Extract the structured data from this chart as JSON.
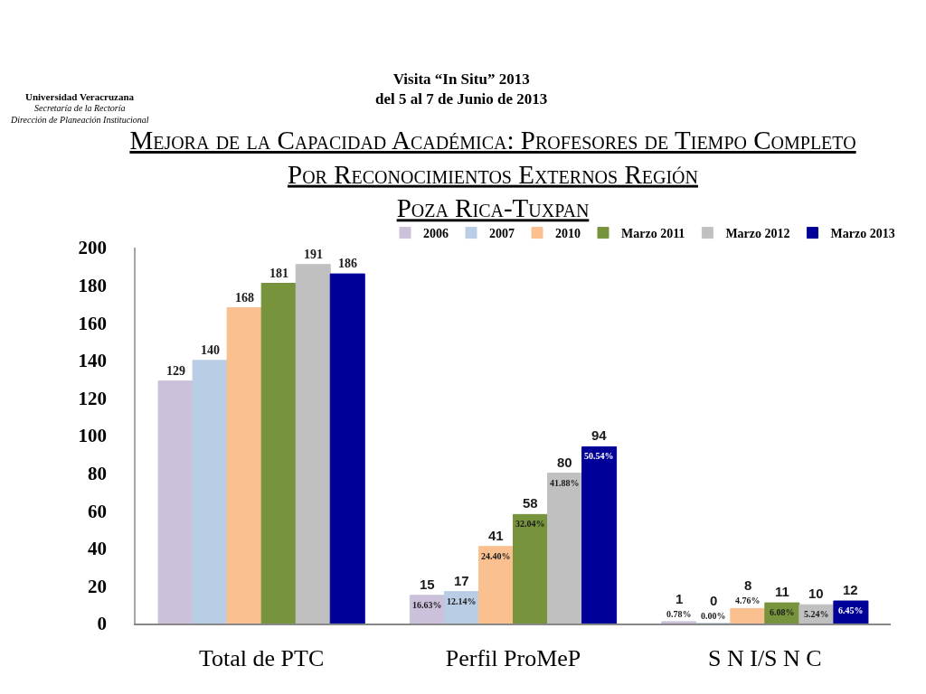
{
  "chart_data": {
    "type": "bar",
    "title": "Mejora de la Capacidad Académica: Profesores de Tiempo Completo\nPor Reconocimientos Externos Región\nPoza Rica-Tuxpan",
    "subtitle": "Visita “In Situ” 2013\ndel 5 al 7 de Junio de 2013",
    "annotations": [
      "Universidad Veracruzana\nSecretaría de la Rectoría\nDirección de Planeación Institucional",
      "16.63%",
      "12.14%",
      "24.40%",
      "32.04%",
      "41.88%",
      "50.54%",
      "0.78%",
      "0.00%",
      "4.76%",
      "6.08%",
      "5.24%",
      "6.45%"
    ],
    "categories": [
      "Total de PTC",
      "Perfil ProMeP",
      "S N I/S N C"
    ],
    "series": [
      {
        "name": "2006",
        "color": "#ccc1da",
        "values": [
          129,
          15,
          1
        ]
      },
      {
        "name": "2007",
        "color": "#b9cde5",
        "values": [
          140,
          17,
          0
        ]
      },
      {
        "name": "2010",
        "color": "#fac090",
        "values": [
          168,
          41,
          8
        ]
      },
      {
        "name": "Marzo 2011",
        "color": "#77933c",
        "values": [
          181,
          58,
          11
        ]
      },
      {
        "name": "Marzo 2012",
        "color": "#c0c0c0",
        "values": [
          191,
          80,
          10
        ]
      },
      {
        "name": "Marzo 2013",
        "color": "#000099",
        "values": [
          186,
          94,
          12
        ]
      }
    ],
    "ylim": [
      0,
      200
    ],
    "yticks": [
      0,
      20,
      40,
      60,
      80,
      100,
      120,
      140,
      160,
      180,
      200
    ],
    "data_labels": true,
    "legend": "top right",
    "grid": false
  }
}
